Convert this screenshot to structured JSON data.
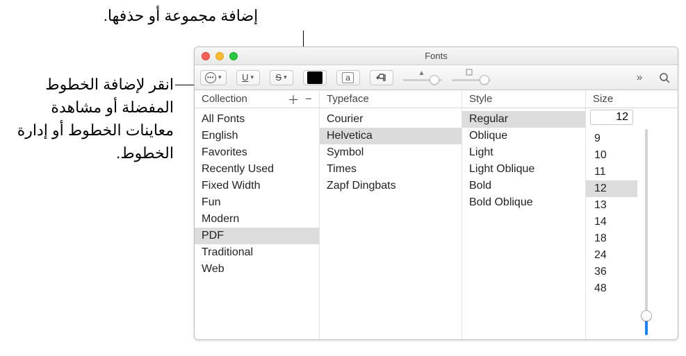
{
  "callouts": {
    "top": "إضافة مجموعة أو حذفها.",
    "left": "انقر لإضافة الخطوط المفضلة أو مشاهدة معاينات الخطوط أو إدارة الخطوط."
  },
  "window": {
    "title": "Fonts"
  },
  "headers": {
    "collection": "Collection",
    "typeface": "Typeface",
    "style": "Style",
    "size": "Size"
  },
  "collections": {
    "items": [
      "All Fonts",
      "English",
      "Favorites",
      "Recently Used",
      "Fixed Width",
      "Fun",
      "Modern",
      "PDF",
      "Traditional",
      "Web"
    ],
    "selected_index": 7
  },
  "typefaces": {
    "items": [
      "Courier",
      "Helvetica",
      "Symbol",
      "Times",
      "Zapf Dingbats"
    ],
    "selected_index": 1
  },
  "styles": {
    "items": [
      "Regular",
      "Oblique",
      "Light",
      "Light Oblique",
      "Bold",
      "Bold Oblique"
    ],
    "selected_index": 0
  },
  "sizes": {
    "current": "12",
    "items": [
      "9",
      "10",
      "11",
      "12",
      "13",
      "14",
      "18",
      "24",
      "36",
      "48"
    ],
    "selected_index": 3,
    "slider_position_pct": 88,
    "slider_fill_pct": 12
  },
  "toolbar": {
    "underline_label": "U",
    "strike_label": "S",
    "box_a": "a",
    "text_color": "#000000"
  },
  "colors": {
    "selection_bg": "#dcdcdc",
    "border": "#c7c7c7",
    "accent": "#1a84ff"
  }
}
